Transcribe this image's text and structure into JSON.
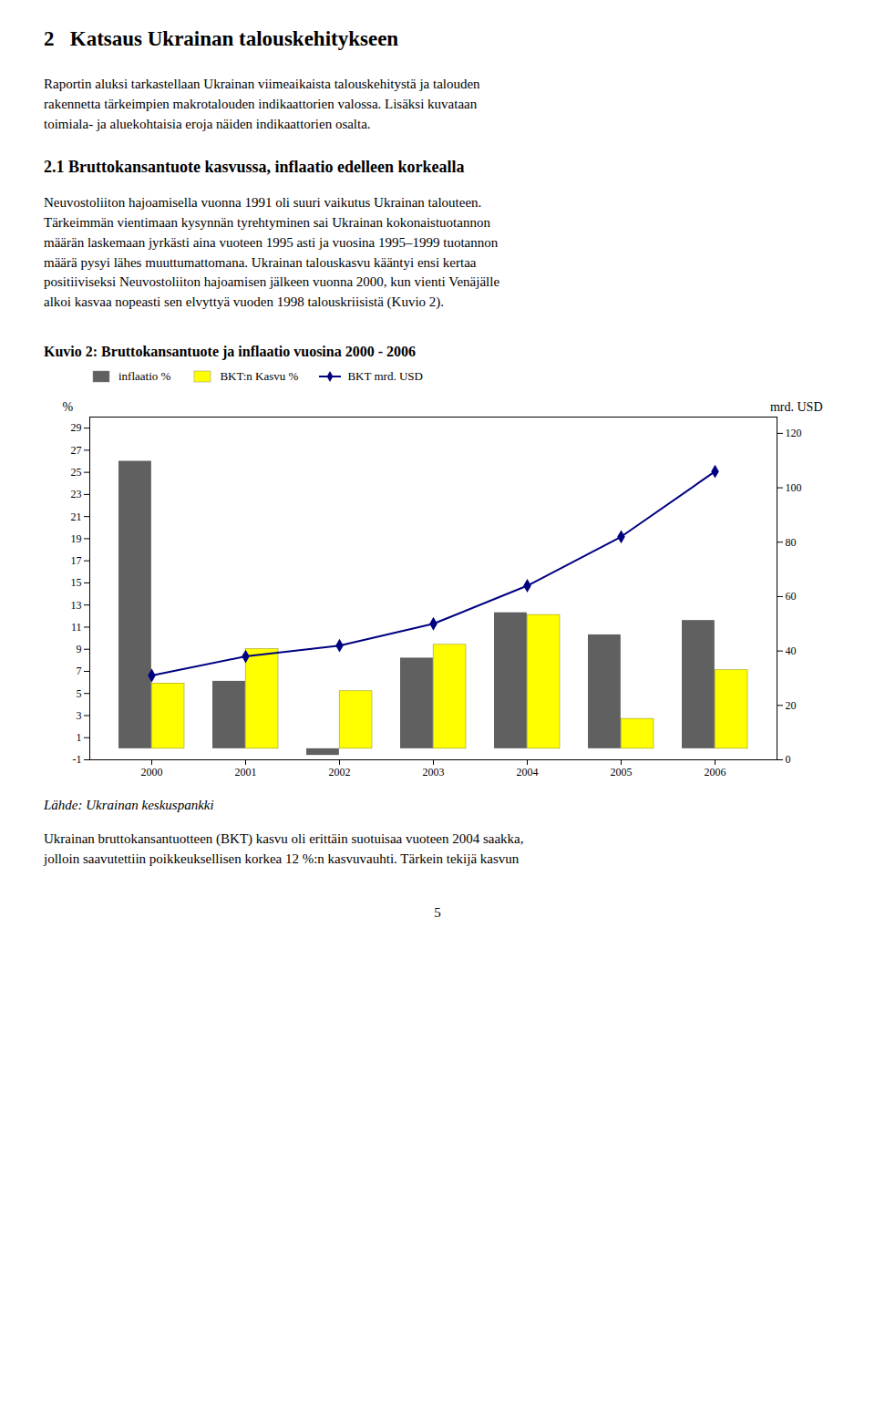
{
  "page_title": "2   Katsaus Ukrainan talouskehitykseen",
  "body_text1": [
    "Raportin aluksi tarkastellaan Ukrainan viimeaikaista talouskehitystä ja talouden",
    "rakennetta tärkeimpien makrotalouden indikaattorien valossa. Lisäksi kuvataan",
    "toimiala- ja aluekohtaisia eroja näiden indikaattorien osalta."
  ],
  "section_title": "2.1 Bruttokansantuote kasvussa, inflaatio edelleen korkealla",
  "body_text2": [
    "Neuvostoliiton hajoamisella vuonna 1991 oli suuri vaikutus Ukrainan talouteen.",
    "Tärkeimmän vientimaan kysynnän tyrehtyminen sai Ukrainan kokonaistuotannon",
    "määrän laskemaan jyrkästi aina vuoteen 1995 asti ja vuosina 1995–1999 tuotannon",
    "määrä pysyi lähes muuttumattomana. Ukrainan talouskasvu kääntyi ensi kertaa",
    "positiiviseksi Neuvostoliiton hajoamisen jälkeen vuonna 2000, kun vienti Venäjälle",
    "alkoi kasvaa nopeasti sen elvyttyä vuoden 1998 talouskriisistä (Kuvio 2)."
  ],
  "source_text": "Lähde: Ukrainan keskuspankki",
  "body_text3": [
    "Ukrainan bruttokansantuotteen (BKT) kasvu oli erittäin suotuisaa vuoteen 2004 saakka,",
    "jolloin saavutettiin poikkeuksellisen korkea 12 %:n kasvuvauhti. Tärkein tekijä kasvun"
  ],
  "page_number": "5",
  "chart_data": {
    "type": "bar",
    "title": "Kuvio 2: Bruttokansantuote ja inflaatio vuosina 2000 - 2006",
    "categories": [
      2000,
      2001,
      2002,
      2003,
      2004,
      2005,
      2006
    ],
    "series": [
      {
        "name": "inflaatio %",
        "color": "#606060",
        "values": [
          26.0,
          6.1,
          -0.6,
          8.2,
          12.3,
          10.3,
          11.6
        ]
      },
      {
        "name": "BKT:n Kasvu %",
        "color": "#ffff00",
        "values": [
          5.9,
          9.0,
          5.2,
          9.4,
          12.1,
          2.7,
          7.1
        ]
      },
      {
        "name": "BKT mrd. USD",
        "color": "#000080",
        "type": "line",
        "marker": "diamond",
        "axis": "y2",
        "values": [
          31,
          38,
          42,
          50,
          64,
          82,
          106
        ]
      }
    ],
    "ylabel": "%",
    "y2label": "mrd. USD",
    "ylim": [
      -1,
      30
    ],
    "yticks": [
      -1,
      1,
      3,
      5,
      7,
      9,
      11,
      13,
      15,
      17,
      19,
      21,
      23,
      25,
      27,
      29
    ],
    "y2lim": [
      0,
      126
    ],
    "y2ticks": [
      0,
      20,
      40,
      60,
      80,
      100,
      120
    ],
    "legend": "upper left",
    "grid": false
  }
}
